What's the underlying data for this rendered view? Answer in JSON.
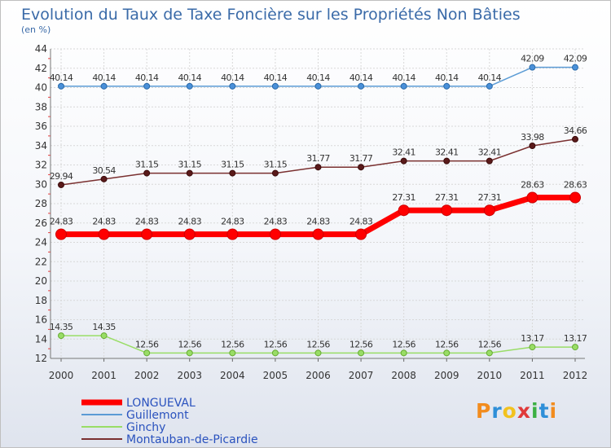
{
  "chart_data": {
    "type": "line",
    "title": "Evolution du Taux de Taxe Foncière sur les Propriétés Non Bâties",
    "subtitle": "(en %)",
    "x": [
      "2000",
      "2001",
      "2002",
      "2003",
      "2004",
      "2005",
      "2006",
      "2007",
      "2008",
      "2009",
      "2010",
      "2011",
      "2012"
    ],
    "ylim": [
      12,
      44
    ],
    "yticks": [
      "12",
      "14",
      "16",
      "18",
      "20",
      "22",
      "24",
      "26",
      "28",
      "30",
      "32",
      "34",
      "36",
      "38",
      "40",
      "42",
      "44"
    ],
    "grid": true,
    "legend_position": "bottom-left",
    "series": [
      {
        "name": "LONGUEVAL",
        "color": "#ff0000",
        "values": [
          24.83,
          24.83,
          24.83,
          24.83,
          24.83,
          24.83,
          24.83,
          24.83,
          27.31,
          27.31,
          27.31,
          28.63,
          28.63
        ],
        "labels": [
          "24.83",
          "24.83",
          "24.83",
          "24.83",
          "24.83",
          "24.83",
          "24.83",
          "24.83",
          "27.31",
          "27.31",
          "27.31",
          "28.63",
          "28.63"
        ]
      },
      {
        "name": "Guillemont",
        "color": "#5b9bd5",
        "values": [
          40.14,
          40.14,
          40.14,
          40.14,
          40.14,
          40.14,
          40.14,
          40.14,
          40.14,
          40.14,
          40.14,
          42.09,
          42.09
        ],
        "labels": [
          "40.14",
          "40.14",
          "40.14",
          "40.14",
          "40.14",
          "40.14",
          "40.14",
          "40.14",
          "40.14",
          "40.14",
          "40.14",
          "42.09",
          "42.09"
        ]
      },
      {
        "name": "Ginchy",
        "color": "#99dd66",
        "values": [
          14.35,
          14.35,
          12.56,
          12.56,
          12.56,
          12.56,
          12.56,
          12.56,
          12.56,
          12.56,
          12.56,
          13.17,
          13.17
        ],
        "labels": [
          "14.35",
          "14.35",
          "12.56",
          "12.56",
          "12.56",
          "12.56",
          "12.56",
          "12.56",
          "12.56",
          "12.56",
          "12.56",
          "13.17",
          "13.17"
        ]
      },
      {
        "name": "Montauban-de-Picardie",
        "color": "#7a3030",
        "values": [
          29.94,
          30.54,
          31.15,
          31.15,
          31.15,
          31.15,
          31.77,
          31.77,
          32.41,
          32.41,
          32.41,
          33.98,
          34.66
        ],
        "labels": [
          "29.94",
          "30.54",
          "31.15",
          "31.15",
          "31.15",
          "31.15",
          "31.77",
          "31.77",
          "32.41",
          "32.41",
          "32.41",
          "33.98",
          "34.66"
        ]
      }
    ]
  },
  "logo": {
    "letters": [
      "P",
      "r",
      "o",
      "x",
      "i",
      "t",
      "i"
    ],
    "colors": [
      "#f28c1e",
      "#2e8fd8",
      "#f2c21e",
      "#e03a3a",
      "#3cb043",
      "#2e8fd8",
      "#f28c1e"
    ]
  }
}
